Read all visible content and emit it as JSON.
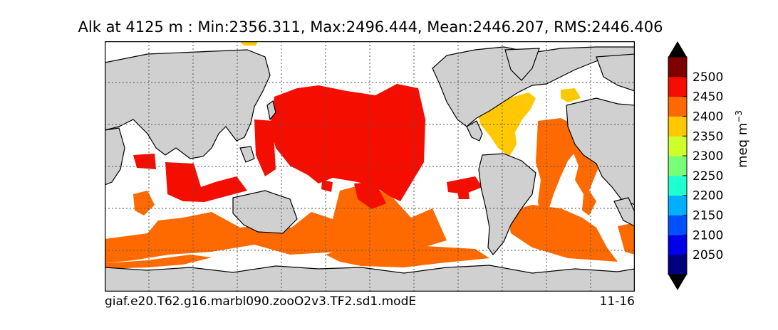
{
  "title": "Alk at 4125 m : Min:2356.311, Max:2496.444, Mean:2446.207, RMS:2446.406",
  "footer": {
    "case_name": "giaf.e20.T62.g16.marbl090.zooO2v3.TF2.sd1.modE",
    "date_label": "11-16"
  },
  "colorbar": {
    "unit_label": "meq m",
    "unit_exponent": "−3",
    "ticks": [
      "2050",
      "2100",
      "2150",
      "2200",
      "2250",
      "2300",
      "2350",
      "2400",
      "2450",
      "2500"
    ],
    "colors": [
      "#00007f",
      "#0000e8",
      "#0050ff",
      "#00b0ff",
      "#20ffd0",
      "#78ff78",
      "#cfff2a",
      "#ffc800",
      "#ff6a00",
      "#f50d00",
      "#7f0000"
    ],
    "extend": "both"
  },
  "map": {
    "projection": "cylindrical",
    "land_color": "#d0d0d0",
    "ocean_no_data_color": "#ffffff",
    "gridlines": "dotted"
  }
}
